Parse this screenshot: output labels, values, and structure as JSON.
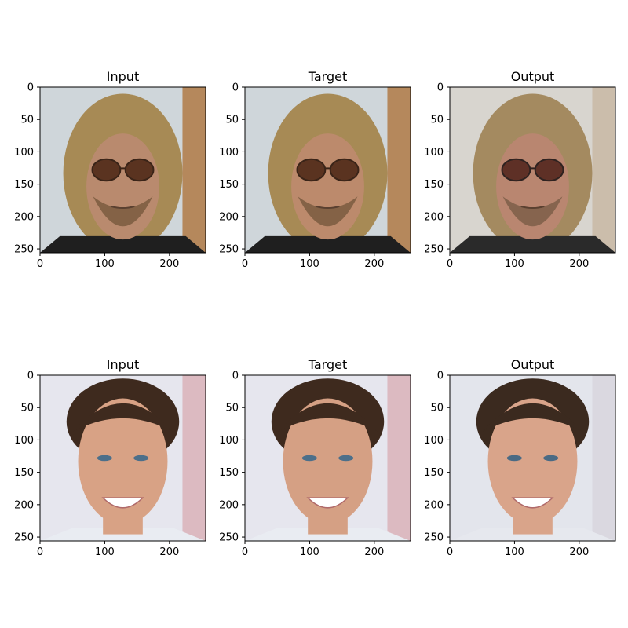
{
  "figure": {
    "background": "#ffffff",
    "axis_color": "#000000"
  },
  "chart_data": [
    {
      "type": "image",
      "title": "Input",
      "row": 0,
      "col": 0,
      "subject": "man-long-blond-hair-sunglasses",
      "xlim": [
        0,
        256
      ],
      "ylim": [
        256,
        0
      ],
      "xticks": [
        0,
        100,
        200
      ],
      "yticks": [
        0,
        50,
        100,
        150,
        200,
        250
      ],
      "palette": {
        "bg": "#cfd6da",
        "bg_accent": "#b07a45",
        "skin": "#b98a6e",
        "hair": "#a78a55",
        "beard": "#7a5a40",
        "shirt": "#1f1f1f",
        "glasses": "#3a2418",
        "lens": "#5a3320"
      }
    },
    {
      "type": "image",
      "title": "Target",
      "row": 0,
      "col": 1,
      "subject": "man-long-blond-hair-sunglasses",
      "xlim": [
        0,
        256
      ],
      "ylim": [
        256,
        0
      ],
      "xticks": [
        0,
        100,
        200
      ],
      "yticks": [
        0,
        50,
        100,
        150,
        200,
        250
      ],
      "palette": {
        "bg": "#cfd6da",
        "bg_accent": "#b07a45",
        "skin": "#bc8a6c",
        "hair": "#a78a55",
        "beard": "#7a5a40",
        "shirt": "#1f1f1f",
        "glasses": "#3a2418",
        "lens": "#5a3320"
      }
    },
    {
      "type": "image",
      "title": "Output",
      "row": 0,
      "col": 2,
      "subject": "man-long-blond-hair-sunglasses",
      "xlim": [
        0,
        256
      ],
      "ylim": [
        256,
        0
      ],
      "xticks": [
        0,
        100,
        200
      ],
      "yticks": [
        0,
        50,
        100,
        150,
        200,
        250
      ],
      "palette": {
        "bg": "#d8d5cf",
        "bg_accent": "#c9b9a5",
        "skin": "#b98670",
        "hair": "#a48a60",
        "beard": "#7d5e48",
        "shirt": "#2a2a2a",
        "glasses": "#2e2220",
        "lens": "#5e3026"
      }
    },
    {
      "type": "image",
      "title": "Input",
      "row": 1,
      "col": 0,
      "subject": "young-man-dark-hair-smiling",
      "xlim": [
        0,
        256
      ],
      "ylim": [
        256,
        0
      ],
      "xticks": [
        0,
        100,
        200
      ],
      "yticks": [
        0,
        50,
        100,
        150,
        200,
        250
      ],
      "palette": {
        "bg": "#e6e6ee",
        "bg_accent": "#d9b2b8",
        "skin": "#d8a285",
        "hair": "#3e2a1e",
        "beard": "#c48e73",
        "shirt": "#e9ecf2",
        "glasses": "#4c6f8a",
        "lens": "#ffffff"
      }
    },
    {
      "type": "image",
      "title": "Target",
      "row": 1,
      "col": 1,
      "subject": "young-man-dark-hair-smiling",
      "xlim": [
        0,
        256
      ],
      "ylim": [
        256,
        0
      ],
      "xticks": [
        0,
        100,
        200
      ],
      "yticks": [
        0,
        50,
        100,
        150,
        200,
        250
      ],
      "palette": {
        "bg": "#e6e6ee",
        "bg_accent": "#d9b2b8",
        "skin": "#d5a084",
        "hair": "#3e2a1e",
        "beard": "#c48e73",
        "shirt": "#e9ecf2",
        "glasses": "#4c6f8a",
        "lens": "#ffffff"
      }
    },
    {
      "type": "image",
      "title": "Output",
      "row": 1,
      "col": 2,
      "subject": "young-man-dark-hair-smiling",
      "xlim": [
        0,
        256
      ],
      "ylim": [
        256,
        0
      ],
      "xticks": [
        0,
        100,
        200
      ],
      "yticks": [
        0,
        50,
        100,
        150,
        200,
        250
      ],
      "palette": {
        "bg": "#e3e5ec",
        "bg_accent": "#d8d6de",
        "skin": "#d9a48a",
        "hair": "#3b2a1f",
        "beard": "#c4907a",
        "shirt": "#e6e8ee",
        "glasses": "#4a6a84",
        "lens": "#ffffff"
      }
    }
  ]
}
